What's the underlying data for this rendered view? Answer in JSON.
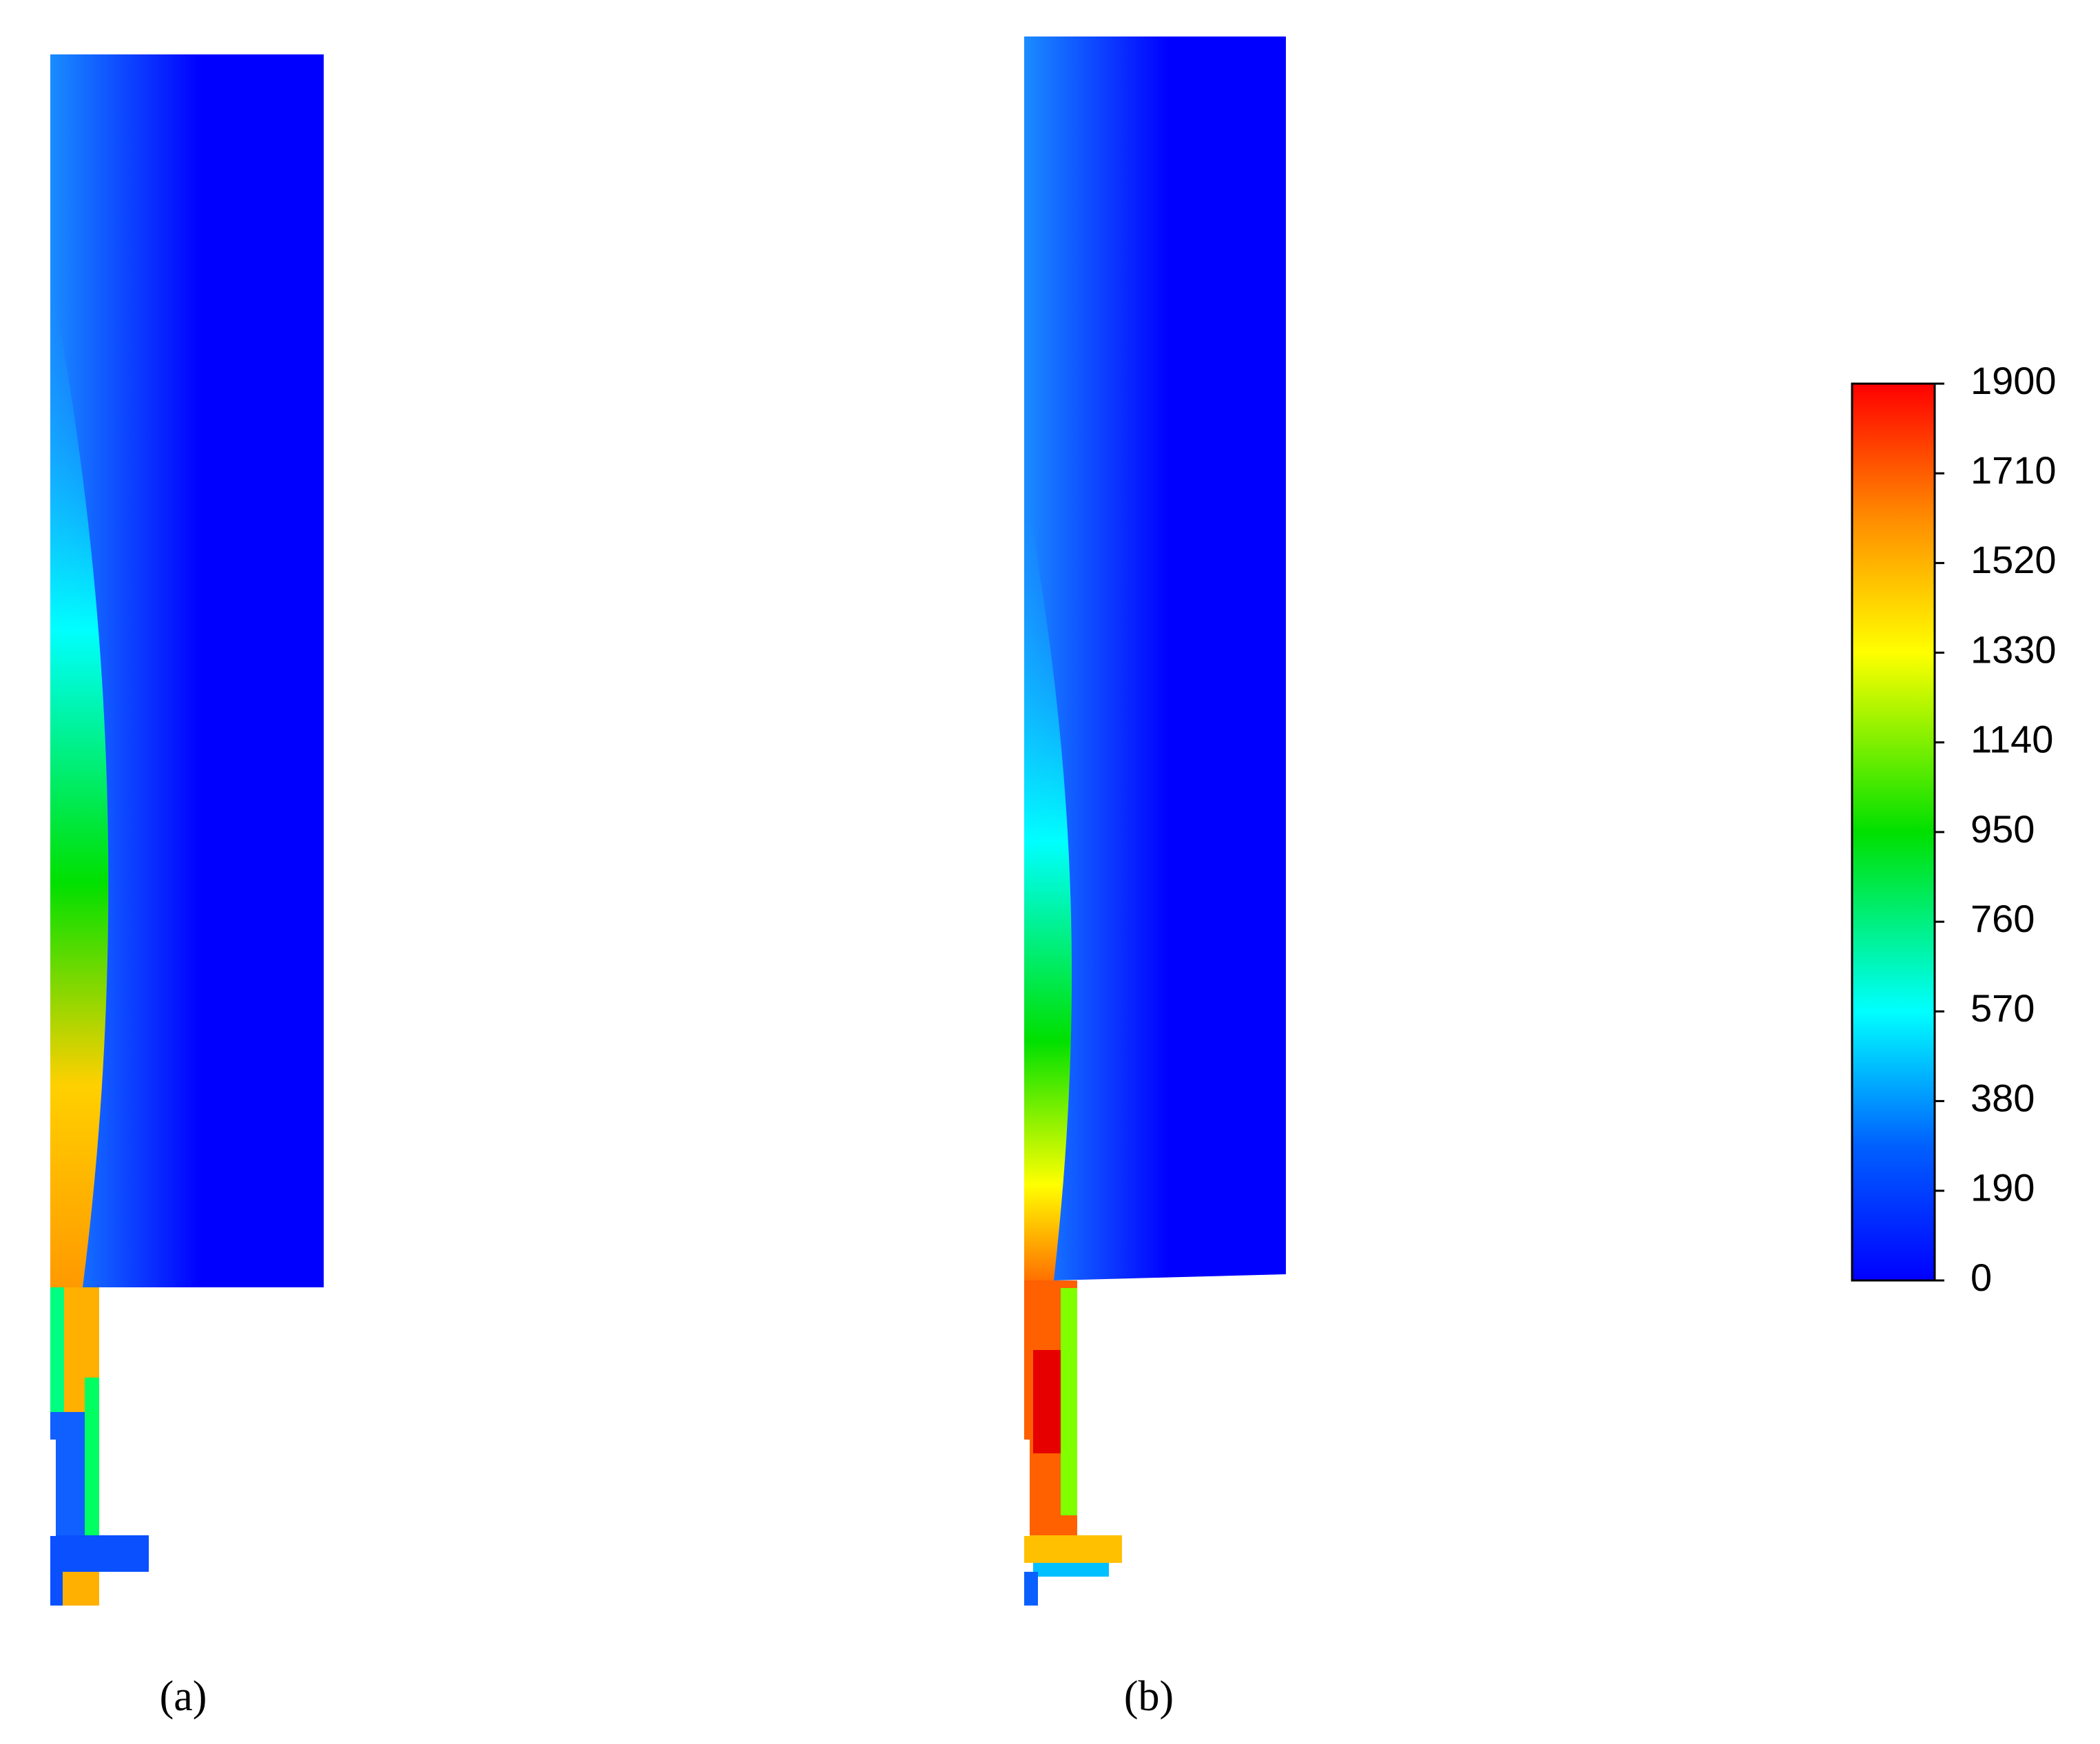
{
  "panels": [
    {
      "label": "(a)"
    },
    {
      "label": "(b)"
    }
  ],
  "colorbar": {
    "lim": [
      0,
      1900
    ],
    "ticks": [
      0,
      190,
      380,
      570,
      760,
      950,
      1140,
      1330,
      1520,
      1710,
      1900
    ]
  }
}
